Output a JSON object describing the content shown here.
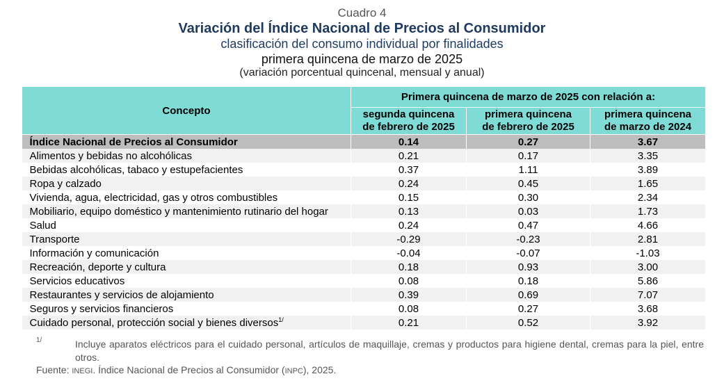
{
  "titles": {
    "cuadro": "Cuadro 4",
    "main": "Variación del Índice Nacional de Precios al Consumidor",
    "sub1": "clasificación del consumo individual por finalidades",
    "sub2": "primera quincena de marzo de 2025",
    "sub3": "(variación porcentual quincenal, mensual y anual)"
  },
  "table": {
    "concept_header": "Concepto",
    "group_header": "Primera quincena de marzo de 2025 con relación a:",
    "col_headers": [
      [
        "segunda quincena",
        "de febrero de 2025"
      ],
      [
        "primera quincena",
        "de febrero de 2025"
      ],
      [
        "primera quincena",
        "de marzo de 2024"
      ]
    ],
    "rows": [
      {
        "label": "Índice Nacional de Precios al Consumidor",
        "values": [
          "0.14",
          "0.27",
          "3.67"
        ]
      },
      {
        "label": "Alimentos y bebidas no alcohólicas",
        "values": [
          "0.21",
          "0.17",
          "3.35"
        ]
      },
      {
        "label": "Bebidas alcohólicas, tabaco y estupefacientes",
        "values": [
          "0.37",
          "1.11",
          "3.89"
        ]
      },
      {
        "label": "Ropa y calzado",
        "values": [
          "0.24",
          "0.45",
          "1.65"
        ]
      },
      {
        "label": "Vivienda, agua, electricidad, gas y otros combustibles",
        "values": [
          "0.15",
          "0.30",
          "2.34"
        ]
      },
      {
        "label": "Mobiliario, equipo doméstico y mantenimiento rutinario del hogar",
        "values": [
          "0.13",
          "0.03",
          "1.73"
        ]
      },
      {
        "label": "Salud",
        "values": [
          "0.24",
          "0.47",
          "4.66"
        ]
      },
      {
        "label": "Transporte",
        "values": [
          "-0.29",
          "-0.23",
          "2.81"
        ]
      },
      {
        "label": "Información y comunicación",
        "values": [
          "-0.04",
          "-0.07",
          "-1.03"
        ]
      },
      {
        "label": "Recreación, deporte y cultura",
        "values": [
          "0.18",
          "0.93",
          "3.00"
        ]
      },
      {
        "label": "Servicios educativos",
        "values": [
          "0.08",
          "0.18",
          "5.86"
        ]
      },
      {
        "label": "Restaurantes y servicios de alojamiento",
        "values": [
          "0.39",
          "0.69",
          "7.07"
        ]
      },
      {
        "label": "Seguros y servicios financieros",
        "values": [
          "0.08",
          "0.27",
          "3.68"
        ]
      },
      {
        "label": "Cuidado personal, protección social y bienes diversos",
        "sup": "1/",
        "values": [
          "0.21",
          "0.52",
          "3.92"
        ]
      }
    ]
  },
  "footnote": {
    "mark": "1/",
    "text": "Incluye aparatos eléctricos para el cuidado personal, artículos de maquillaje, cremas y productos para higiene dental, cremas para la piel, entre otros."
  },
  "source": {
    "label": "Fuente:",
    "org": "INEGI",
    "text_before": ". Índice Nacional de Precios al Consumidor (",
    "abbr": "INPC",
    "text_after": "), 2025."
  }
}
